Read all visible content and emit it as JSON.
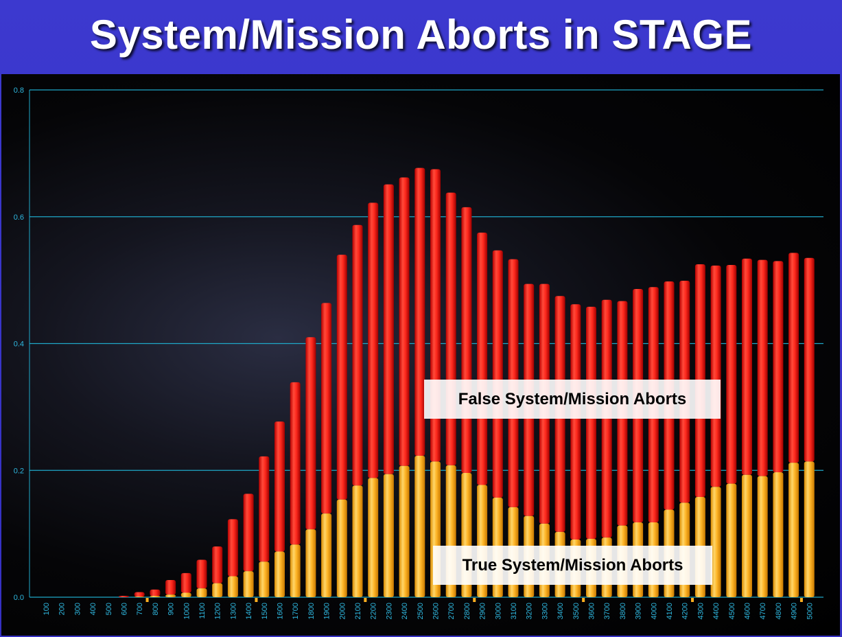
{
  "title": "System/Mission Aborts in STAGE",
  "colors": {
    "background": "#3a35c8",
    "false_series": "#ff2020",
    "true_series": "#ffb020",
    "gridline": "#1fa8c8",
    "tick_text": "#2fb8e0"
  },
  "chart_data": {
    "type": "bar",
    "stacked": true,
    "title": "System/Mission Aborts in STAGE",
    "xlabel": "",
    "ylabel": "",
    "ylim": [
      0,
      0.8
    ],
    "yticks": [
      "0.0",
      "0.2",
      "0.4",
      "0.6",
      "0.8"
    ],
    "grid": true,
    "categories": [
      "100",
      "200",
      "300",
      "400",
      "500",
      "600",
      "700",
      "800",
      "900",
      "1000",
      "1100",
      "1200",
      "1300",
      "1400",
      "1500",
      "1600",
      "1700",
      "1800",
      "1900",
      "2000",
      "2100",
      "2200",
      "2300",
      "2400",
      "2500",
      "2600",
      "2700",
      "2800",
      "2900",
      "3000",
      "3100",
      "3200",
      "3300",
      "3400",
      "3500",
      "3600",
      "3700",
      "3800",
      "3900",
      "4000",
      "4100",
      "4200",
      "4300",
      "4400",
      "4500",
      "4600",
      "4700",
      "4800",
      "4900",
      "5000"
    ],
    "series": [
      {
        "name": "True System/Mission Aborts",
        "values": [
          0,
          0,
          0,
          0,
          0,
          0,
          0.001,
          0.002,
          0.004,
          0.007,
          0.014,
          0.022,
          0.033,
          0.041,
          0.056,
          0.072,
          0.083,
          0.107,
          0.132,
          0.154,
          0.176,
          0.188,
          0.194,
          0.207,
          0.223,
          0.214,
          0.208,
          0.196,
          0.177,
          0.157,
          0.142,
          0.128,
          0.116,
          0.103,
          0.091,
          0.092,
          0.094,
          0.113,
          0.118,
          0.118,
          0.138,
          0.149,
          0.158,
          0.174,
          0.179,
          0.193,
          0.191,
          0.197,
          0.212,
          0.214
        ]
      },
      {
        "name": "False System/Mission Aborts",
        "values": [
          0,
          0,
          0,
          0,
          0,
          0.002,
          0.007,
          0.01,
          0.023,
          0.031,
          0.045,
          0.058,
          0.09,
          0.122,
          0.166,
          0.205,
          0.256,
          0.303,
          0.332,
          0.386,
          0.411,
          0.434,
          0.457,
          0.455,
          0.454,
          0.461,
          0.43,
          0.419,
          0.398,
          0.39,
          0.391,
          0.366,
          0.378,
          0.372,
          0.371,
          0.366,
          0.375,
          0.354,
          0.368,
          0.371,
          0.36,
          0.35,
          0.367,
          0.349,
          0.345,
          0.341,
          0.341,
          0.333,
          0.331,
          0.321
        ]
      }
    ],
    "annotations": [
      "False System/Mission Aborts",
      "True System/Mission Aborts"
    ]
  }
}
